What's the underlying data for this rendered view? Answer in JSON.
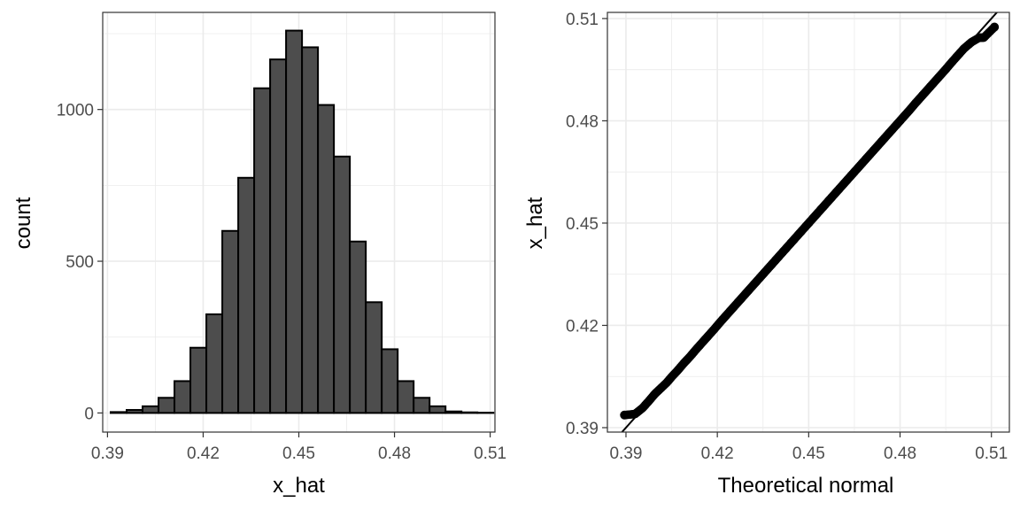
{
  "chart_data": [
    {
      "type": "bar",
      "title": "",
      "xlabel": "x_hat",
      "ylabel": "count",
      "xlim": [
        0.3885,
        0.5115
      ],
      "ylim": [
        -63,
        1320
      ],
      "x_ticks": [
        0.39,
        0.42,
        0.45,
        0.48,
        0.51
      ],
      "x_tick_labels": [
        "0.39",
        "0.42",
        "0.45",
        "0.48",
        "0.51"
      ],
      "y_ticks": [
        0,
        500,
        1000
      ],
      "y_tick_labels": [
        "0",
        "500",
        "1000"
      ],
      "grid": true,
      "bin_width": 0.005,
      "bin_centers": [
        0.3935,
        0.3985,
        0.4035,
        0.4085,
        0.4135,
        0.4185,
        0.4235,
        0.4285,
        0.4335,
        0.4385,
        0.4435,
        0.4485,
        0.4535,
        0.4585,
        0.4635,
        0.4685,
        0.4735,
        0.4785,
        0.4835,
        0.4885,
        0.4935,
        0.4985,
        0.5035,
        0.5085
      ],
      "values": [
        3,
        10,
        22,
        50,
        105,
        215,
        325,
        600,
        775,
        1070,
        1165,
        1260,
        1205,
        1015,
        845,
        565,
        365,
        210,
        105,
        50,
        22,
        5,
        2,
        1
      ],
      "bar_fill": "#4d4d4d",
      "bar_stroke": "#000000"
    },
    {
      "type": "scatter",
      "title": "",
      "xlabel": "Theoretical normal",
      "ylabel": "x_hat",
      "xlim": [
        0.3839,
        0.5159
      ],
      "ylim": [
        0.3887,
        0.5118
      ],
      "x_ticks": [
        0.39,
        0.42,
        0.45,
        0.48,
        0.51
      ],
      "x_tick_labels": [
        "0.39",
        "0.42",
        "0.45",
        "0.48",
        "0.51"
      ],
      "y_ticks": [
        0.39,
        0.42,
        0.45,
        0.48,
        0.51
      ],
      "y_tick_labels": [
        "0.39",
        "0.42",
        "0.45",
        "0.48",
        "0.51"
      ],
      "grid": true,
      "series": [
        {
          "x": [
            0.3895,
            0.393,
            0.3955,
            0.3975,
            0.3995,
            0.4015,
            0.4035,
            0.405,
            0.407,
            0.409,
            0.411,
            0.413,
            0.415,
            0.417,
            0.419,
            0.421,
            0.423,
            0.425,
            0.427,
            0.429,
            0.431,
            0.433,
            0.435,
            0.437,
            0.439,
            0.441,
            0.443,
            0.445,
            0.447,
            0.449,
            0.451,
            0.453,
            0.455,
            0.457,
            0.459,
            0.461,
            0.463,
            0.465,
            0.467,
            0.469,
            0.471,
            0.473,
            0.475,
            0.477,
            0.479,
            0.481,
            0.483,
            0.485,
            0.487,
            0.489,
            0.491,
            0.493,
            0.495,
            0.497,
            0.499,
            0.501,
            0.5035,
            0.506,
            0.5075,
            0.511
          ],
          "y": [
            0.3937,
            0.394,
            0.3958,
            0.3978,
            0.3999,
            0.4016,
            0.4033,
            0.4049,
            0.4068,
            0.4089,
            0.4108,
            0.4129,
            0.4149,
            0.4169,
            0.4189,
            0.421,
            0.423,
            0.425,
            0.427,
            0.429,
            0.431,
            0.433,
            0.435,
            0.437,
            0.439,
            0.441,
            0.443,
            0.445,
            0.447,
            0.449,
            0.451,
            0.453,
            0.455,
            0.457,
            0.459,
            0.461,
            0.463,
            0.465,
            0.467,
            0.469,
            0.471,
            0.473,
            0.475,
            0.477,
            0.479,
            0.481,
            0.483,
            0.4851,
            0.4871,
            0.4891,
            0.4911,
            0.4931,
            0.4951,
            0.4972,
            0.4992,
            0.5012,
            0.5031,
            0.5044,
            0.5044,
            0.5075
          ]
        }
      ],
      "reference_line": {
        "slope": 1,
        "intercept": 0
      },
      "point_color": "#000000"
    }
  ]
}
